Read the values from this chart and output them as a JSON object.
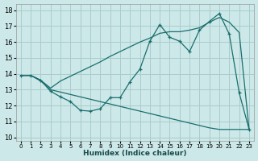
{
  "xlabel": "Humidex (Indice chaleur)",
  "bg_color": "#cce8e8",
  "grid_color": "#aacccc",
  "line_color": "#1a6e6e",
  "xlim": [
    -0.5,
    23.5
  ],
  "ylim": [
    9.8,
    18.4
  ],
  "xticks": [
    0,
    1,
    2,
    3,
    4,
    5,
    6,
    7,
    8,
    9,
    10,
    11,
    12,
    13,
    14,
    15,
    16,
    17,
    18,
    19,
    20,
    21,
    22,
    23
  ],
  "yticks": [
    10,
    11,
    12,
    13,
    14,
    15,
    16,
    17,
    18
  ],
  "line1_y": [
    13.9,
    13.9,
    13.6,
    12.9,
    12.55,
    12.25,
    11.7,
    11.65,
    11.8,
    12.5,
    12.5,
    13.5,
    14.3,
    16.05,
    17.1,
    16.3,
    16.05,
    15.4,
    16.75,
    17.3,
    17.8,
    16.5,
    12.8,
    10.5
  ],
  "line2_y": [
    13.9,
    13.9,
    13.6,
    13.1,
    13.55,
    13.85,
    14.15,
    14.45,
    14.75,
    15.1,
    15.4,
    15.7,
    16.0,
    16.25,
    16.55,
    16.65,
    16.65,
    16.75,
    16.9,
    17.25,
    17.55,
    17.25,
    16.6,
    10.5
  ],
  "line3_y": [
    13.9,
    13.9,
    13.55,
    13.0,
    12.85,
    12.7,
    12.55,
    12.4,
    12.25,
    12.1,
    11.95,
    11.8,
    11.65,
    11.5,
    11.35,
    11.2,
    11.05,
    10.9,
    10.75,
    10.6,
    10.5,
    10.5,
    10.5,
    10.5
  ]
}
